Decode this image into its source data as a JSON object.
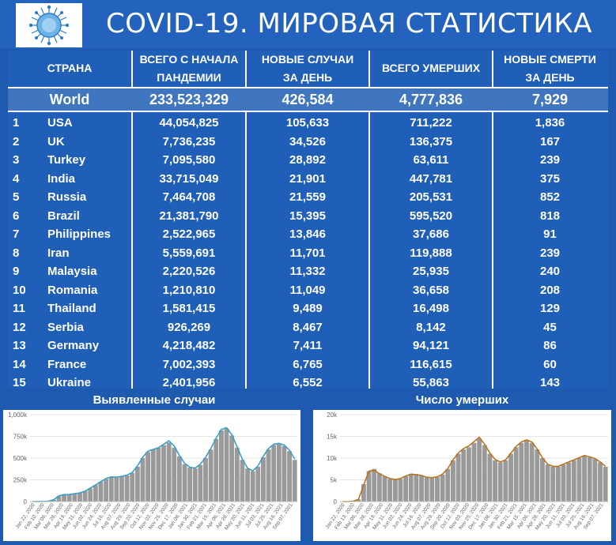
{
  "title": "COVID-19. МИРОВАЯ СТАТИСТИКА",
  "colors": {
    "background": "#1e5bb0",
    "header": "#2363bd",
    "world_row": "#3f76bf",
    "bars": "#9a9a9a",
    "cases_line": "#3a9fc6",
    "deaths_line": "#b8731f"
  },
  "table": {
    "headers": {
      "country": "СТРАНА",
      "total_1": "ВСЕГО С НАЧАЛА",
      "total_2": "ПАНДЕМИИ",
      "new_1": "НОВЫЕ СЛУЧАИ",
      "new_2": "ЗА ДЕНЬ",
      "deaths": "ВСЕГО УМЕРШИХ",
      "newd_1": "НОВЫЕ СМЕРТИ",
      "newd_2": "ЗА ДЕНЬ"
    },
    "world": {
      "name": "World",
      "total": "233,523,329",
      "new": "426,584",
      "deaths": "4,777,836",
      "new_deaths": "7,929"
    },
    "rows": [
      {
        "rank": "1",
        "country": "USA",
        "total": "44,054,825",
        "new": "105,633",
        "deaths": "711,222",
        "new_deaths": "1,836"
      },
      {
        "rank": "2",
        "country": "UK",
        "total": "7,736,235",
        "new": "34,526",
        "deaths": "136,375",
        "new_deaths": "167"
      },
      {
        "rank": "3",
        "country": "Turkey",
        "total": "7,095,580",
        "new": "28,892",
        "deaths": "63,611",
        "new_deaths": "239"
      },
      {
        "rank": "4",
        "country": "India",
        "total": "33,715,049",
        "new": "21,901",
        "deaths": "447,781",
        "new_deaths": "375"
      },
      {
        "rank": "5",
        "country": "Russia",
        "total": "7,464,708",
        "new": "21,559",
        "deaths": "205,531",
        "new_deaths": "852"
      },
      {
        "rank": "6",
        "country": "Brazil",
        "total": "21,381,790",
        "new": "15,395",
        "deaths": "595,520",
        "new_deaths": "818"
      },
      {
        "rank": "7",
        "country": "Philippines",
        "total": "2,522,965",
        "new": "13,846",
        "deaths": "37,686",
        "new_deaths": "91"
      },
      {
        "rank": "8",
        "country": "Iran",
        "total": "5,559,691",
        "new": "11,701",
        "deaths": "119,888",
        "new_deaths": "239"
      },
      {
        "rank": "9",
        "country": "Malaysia",
        "total": "2,220,526",
        "new": "11,332",
        "deaths": "25,935",
        "new_deaths": "240"
      },
      {
        "rank": "10",
        "country": "Romania",
        "total": "1,210,810",
        "new": "11,049",
        "deaths": "36,658",
        "new_deaths": "208"
      },
      {
        "rank": "11",
        "country": "Thailand",
        "total": "1,581,415",
        "new": "9,489",
        "deaths": "16,498",
        "new_deaths": "129"
      },
      {
        "rank": "12",
        "country": "Serbia",
        "total": "926,269",
        "new": "8,467",
        "deaths": "8,142",
        "new_deaths": "45"
      },
      {
        "rank": "13",
        "country": "Germany",
        "total": "4,218,482",
        "new": "7,411",
        "deaths": "94,121",
        "new_deaths": "86"
      },
      {
        "rank": "14",
        "country": "France",
        "total": "7,002,393",
        "new": "6,765",
        "deaths": "116,615",
        "new_deaths": "60"
      },
      {
        "rank": "15",
        "country": "Ukraine",
        "total": "2,401,956",
        "new": "6,552",
        "deaths": "55,863",
        "new_deaths": "143"
      }
    ]
  },
  "chart_data": [
    {
      "type": "bar",
      "title": "Выявленные случаи",
      "xlabel": "",
      "ylabel": "",
      "ylim": [
        0,
        1000000
      ],
      "yticks": [
        "0",
        "250k",
        "500k",
        "750k",
        "1,000k"
      ],
      "xticks": [
        "Jan 22, 2020",
        "Feb 10, 2020",
        "Mar 06, 2020",
        "Mar 28, 2020",
        "Apr 19, 2020",
        "May 11, 2020",
        "Jun 02, 2020",
        "Jun 24, 2020",
        "Jul 16, 2020",
        "Aug 07, 2020",
        "Aug 29, 2020",
        "Sep 20, 2020",
        "Oct 12, 2020",
        "Nov 03, 2020",
        "Nov 25, 2020",
        "Dec 17, 2020",
        "Jan 08, 2021",
        "Jan 30, 2021",
        "Feb 21, 2021",
        "Mar 15, 2021",
        "Apr 06, 2021",
        "Apr 28, 2021",
        "May 20, 2021",
        "Jun 11, 2021",
        "Jul 03, 2021",
        "Jul 25, 2021",
        "Aug 16, 2021",
        "Sep 07, 2021"
      ],
      "series": [
        {
          "values": [
            0,
            1000,
            2000,
            5000,
            20000,
            60000,
            80000,
            80000,
            90000,
            100000,
            120000,
            150000,
            190000,
            230000,
            260000,
            280000,
            280000,
            290000,
            300000,
            330000,
            400000,
            500000,
            570000,
            600000,
            620000,
            650000,
            680000,
            620000,
            520000,
            430000,
            390000,
            380000,
            420000,
            500000,
            600000,
            720000,
            820000,
            840000,
            760000,
            620000,
            480000,
            380000,
            350000,
            400000,
            510000,
            600000,
            650000,
            660000,
            640000,
            580000,
            480000
          ]
        },
        {
          "values": [
            0,
            1000,
            2000,
            5000,
            20000,
            65000,
            80000,
            82000,
            90000,
            100000,
            120000,
            155000,
            190000,
            230000,
            265000,
            285000,
            280000,
            290000,
            305000,
            335000,
            410000,
            510000,
            580000,
            600000,
            620000,
            660000,
            700000,
            640000,
            530000,
            440000,
            395000,
            385000,
            430000,
            510000,
            610000,
            730000,
            830000,
            850000,
            770000,
            630000,
            490000,
            385000,
            355000,
            410000,
            520000,
            610000,
            660000,
            670000,
            650000,
            590000,
            490000
          ]
        }
      ]
    },
    {
      "type": "bar",
      "title": "Число умерших",
      "xlabel": "",
      "ylabel": "",
      "ylim": [
        0,
        20000
      ],
      "yticks": [
        "0",
        "5k",
        "10k",
        "15k",
        "20k"
      ],
      "xticks": [
        "Jan 22, 2020",
        "Feb 13, 2020",
        "Mar 06, 2020",
        "Mar 28, 2020",
        "Apr 19, 2020",
        "May 11, 2020",
        "Jun 02, 2020",
        "Jun 24, 2020",
        "Jul 16, 2020",
        "Aug 07, 2020",
        "Aug 29, 2020",
        "Sep 20, 2020",
        "Oct 12, 2020",
        "Nov 03, 2020",
        "Nov 25, 2020",
        "Dec 17, 2020",
        "Jan 08, 2021",
        "Jan 30, 2021",
        "Feb 21, 2021",
        "Mar 15, 2021",
        "Apr 06, 2021",
        "Apr 28, 2021",
        "May 20, 2021",
        "Jun 11, 2021",
        "Jul 03, 2021",
        "Jul 25, 2021",
        "Aug 16, 2021",
        "Sep 07, 2021"
      ],
      "series": [
        {
          "values": [
            0,
            0,
            100,
            500,
            4000,
            7000,
            7500,
            6500,
            5800,
            5200,
            5000,
            5200,
            5800,
            6200,
            6300,
            6000,
            5600,
            5400,
            5600,
            6200,
            7500,
            9500,
            11000,
            12000,
            12500,
            13500,
            14500,
            13000,
            11000,
            9500,
            9000,
            9500,
            11000,
            12500,
            13500,
            14000,
            13500,
            12000,
            10000,
            8500,
            8000,
            8000,
            8500,
            9000,
            9500,
            10000,
            10500,
            10200,
            9800,
            9000,
            8000
          ]
        },
        {
          "values": [
            0,
            0,
            100,
            500,
            3800,
            7000,
            7200,
            6400,
            5800,
            5300,
            5100,
            5300,
            5900,
            6300,
            6200,
            6000,
            5600,
            5500,
            5700,
            6300,
            7600,
            9600,
            11200,
            12200,
            12800,
            13800,
            14800,
            13200,
            11200,
            9700,
            9100,
            9600,
            11100,
            12700,
            13700,
            14200,
            13700,
            12100,
            10100,
            8600,
            8100,
            8100,
            8600,
            9100,
            9600,
            10100,
            10600,
            10300,
            9900,
            9100,
            8100
          ]
        }
      ]
    }
  ]
}
